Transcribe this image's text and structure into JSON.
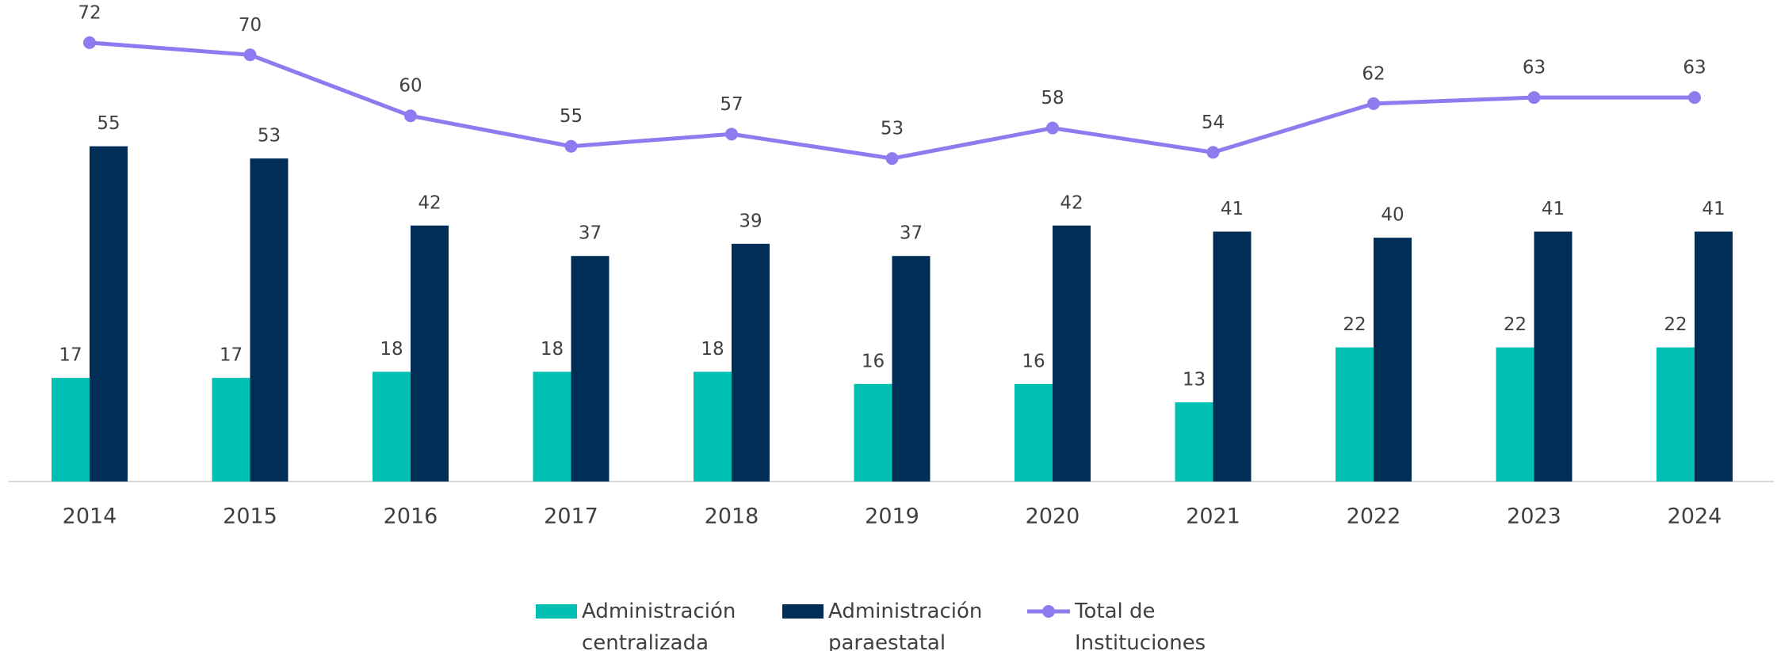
{
  "chart_data": {
    "type": "bar_line",
    "categories": [
      "2014",
      "2015",
      "2016",
      "2017",
      "2018",
      "2019",
      "2020",
      "2021",
      "2022",
      "2023",
      "2024"
    ],
    "series": [
      {
        "name": "Administración centralizada",
        "color": "#00bfb3",
        "kind": "bar",
        "values": [
          17,
          17,
          18,
          18,
          18,
          16,
          16,
          13,
          22,
          22,
          22
        ]
      },
      {
        "name": "Administración paraestatal",
        "color": "#002e57",
        "kind": "bar",
        "values": [
          55,
          53,
          42,
          37,
          39,
          37,
          42,
          41,
          40,
          41,
          41
        ]
      },
      {
        "name": "Total de Instituciones",
        "color": "#8d7bef",
        "kind": "line",
        "values": [
          72,
          70,
          60,
          55,
          57,
          53,
          58,
          54,
          62,
          63,
          63
        ]
      }
    ],
    "ylim": [
      0,
      79
    ],
    "legend": "bottom"
  }
}
